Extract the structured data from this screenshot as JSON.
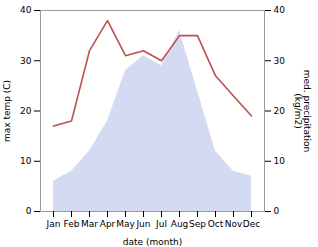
{
  "chart_data": {
    "type": "line",
    "categories": [
      "Jan",
      "Feb",
      "Mar",
      "Apr",
      "May",
      "Jun",
      "Jul",
      "Aug",
      "Sep",
      "Oct",
      "Nov",
      "Dec"
    ],
    "xlabel": "date (month)",
    "ylabel": "max temp (C)",
    "y2label": "med. precipitation\n(kg/m2)",
    "ylim": [
      0,
      40
    ],
    "yticks": [
      0,
      10,
      20,
      30,
      40
    ],
    "y2lim": [
      0,
      40
    ],
    "y2ticks": [
      0,
      10,
      20,
      30,
      40
    ],
    "series": [
      {
        "type": "area",
        "axis": "y2",
        "color": "#b0bce8",
        "values": [
          6,
          8,
          12,
          18,
          28,
          31,
          29,
          36,
          24,
          12,
          8,
          7
        ]
      },
      {
        "type": "line",
        "color": "#c0504d",
        "values": [
          17.0,
          18.0,
          32.0,
          38.0,
          31.0,
          32.0,
          30.0,
          35.0,
          35.0,
          27.0,
          23.0,
          19.0
        ]
      }
    ]
  }
}
